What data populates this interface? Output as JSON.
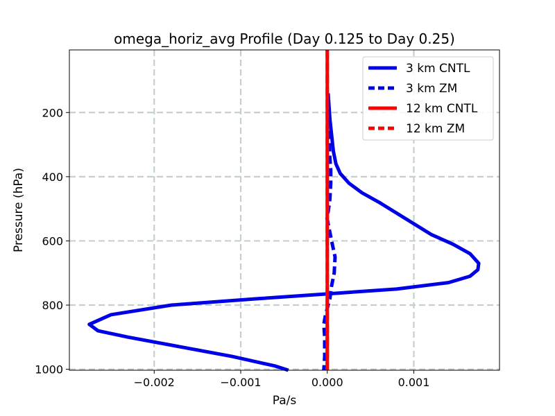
{
  "chart_data": {
    "type": "line",
    "title": "omega_horiz_avg Profile (Day 0.125 to Day 0.25)",
    "xlabel": "Pa/s",
    "ylabel": "Pressure (hPa)",
    "xlim": [
      -0.00298,
      0.00199
    ],
    "ylim": [
      1003,
      5
    ],
    "y_inverted": true,
    "grid": true,
    "legend_position": "upper right",
    "x_ticks": [
      -0.002,
      -0.001,
      0.0,
      0.001
    ],
    "x_tick_labels": [
      "−0.002",
      "−0.001",
      "0.000",
      "0.001"
    ],
    "y_ticks": [
      200,
      400,
      600,
      800,
      1000
    ],
    "y_tick_labels": [
      "200",
      "400",
      "600",
      "800",
      "1000"
    ],
    "colors": {
      "blue": "#0000e6",
      "red": "#ff0000",
      "grid": "#c6cfd0"
    },
    "series": [
      {
        "name": "3 km CNTL",
        "color": "#0000e6",
        "style": "solid",
        "x": [
          1e-05,
          2e-05,
          3e-05,
          5e-05,
          7e-05,
          0.0001,
          0.00015,
          0.00025,
          0.0004,
          0.0006,
          0.0009,
          0.0012,
          0.00145,
          0.00165,
          0.00175,
          0.00174,
          0.00165,
          0.0014,
          0.0008,
          0.0,
          -0.0008,
          -0.0018,
          -0.0025,
          -0.00275,
          -0.00265,
          -0.0023,
          -0.0017,
          -0.0011,
          -0.0006,
          -0.00045
        ],
        "y": [
          140,
          180,
          220,
          270,
          320,
          360,
          390,
          420,
          450,
          480,
          530,
          580,
          610,
          640,
          670,
          690,
          710,
          730,
          750,
          765,
          780,
          800,
          830,
          860,
          880,
          900,
          930,
          960,
          990,
          1003
        ]
      },
      {
        "name": "3 km ZM",
        "color": "#0000e6",
        "style": "dashed",
        "x": [
          1e-05,
          1e-05,
          2e-05,
          3e-05,
          4e-05,
          4e-05,
          3e-05,
          1e-05,
          -1e-05,
          2e-05,
          5e-05,
          9e-05,
          8e-05,
          5e-05,
          3e-05,
          -2e-05,
          -4e-05,
          -3e-05,
          -3e-05,
          -4e-05
        ],
        "y": [
          140,
          200,
          280,
          340,
          380,
          420,
          470,
          510,
          520,
          560,
          600,
          650,
          700,
          740,
          780,
          830,
          860,
          900,
          960,
          1003
        ]
      },
      {
        "name": "12 km CNTL",
        "color": "#ff0000",
        "style": "solid",
        "x": [
          0.0,
          0.0,
          0.0
        ],
        "y": [
          5,
          500,
          1003
        ]
      },
      {
        "name": "12 km ZM",
        "color": "#ff0000",
        "style": "dashed",
        "x": [
          0.0,
          0.0,
          0.0
        ],
        "y": [
          5,
          500,
          1003
        ]
      }
    ]
  }
}
